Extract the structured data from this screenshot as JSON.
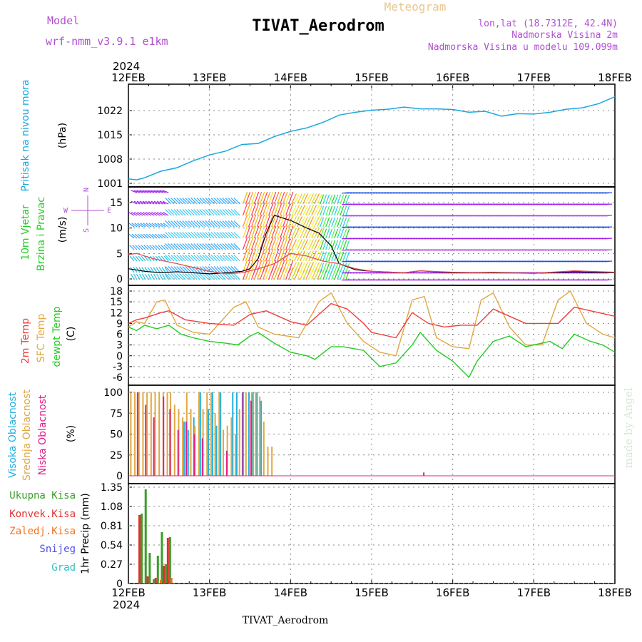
{
  "header": {
    "model_label": "Model",
    "model_value": "wrf-nmm_v3.9.1  e1km",
    "product": "Meteogram",
    "station": "TIVAT_Aerodrom",
    "lonlat": "lon,lat (18.7312E, 42.4N)",
    "elevation": "Nadmorska Visina 2m",
    "model_elevation": "Nadmorska Visina u modelu 109.099m"
  },
  "footer": {
    "station": "TIVAT_Aerodrom",
    "credit": "made by Angel"
  },
  "time_axis": {
    "year": "2024",
    "labels": [
      "12FEB",
      "13FEB",
      "14FEB",
      "15FEB",
      "16FEB",
      "17FEB",
      "18FEB"
    ]
  },
  "colors": {
    "pressure": "#1aa7e0",
    "temp2m": "#f03c3c",
    "sfc_temp": "#e0a840",
    "dewpoint": "#22cc22",
    "high_cloud": "#22b0e0",
    "mid_cloud": "#e0a840",
    "low_cloud": "#e0208a",
    "total_precip": "#3a9e2a",
    "conv_precip": "#e03030",
    "frozen_precip": "#f07020",
    "snow": "#5050e0",
    "hail": "#30c0c0",
    "wind_gust": "#000000",
    "wind_speed": "#e05050",
    "purple_text": "#b050d0"
  },
  "chart_data": [
    {
      "type": "line",
      "panel": "pressure",
      "ylabel_lines": [
        "Pritisak na nivou mora",
        "(hPa)"
      ],
      "ylim": [
        1001,
        1027
      ],
      "yticks": [
        "1022",
        "1015",
        "1008",
        "1001"
      ],
      "x_range_days": [
        12,
        18
      ],
      "series": [
        {
          "name": "Pritisak na nivou mora",
          "x": [
            12.0,
            12.1,
            12.2,
            12.4,
            12.6,
            12.8,
            13.0,
            13.2,
            13.4,
            13.6,
            13.8,
            14.0,
            14.2,
            14.4,
            14.6,
            14.8,
            15.0,
            15.2,
            15.4,
            15.6,
            15.8,
            16.0,
            16.2,
            16.4,
            16.6,
            16.8,
            17.0,
            17.2,
            17.4,
            17.6,
            17.8,
            18.0
          ],
          "values": [
            1002.3,
            1002.0,
            1002.6,
            1004.5,
            1005.5,
            1007.5,
            1009.2,
            1010.3,
            1012.2,
            1012.5,
            1014.5,
            1016.0,
            1017.0,
            1018.6,
            1020.7,
            1021.5,
            1022.1,
            1022.4,
            1023.0,
            1022.5,
            1022.5,
            1022.3,
            1021.5,
            1021.8,
            1020.4,
            1021.1,
            1021.0,
            1021.5,
            1022.4,
            1022.8,
            1024.0,
            1026.0
          ]
        }
      ]
    },
    {
      "type": "line",
      "panel": "wind",
      "ylabel_lines": [
        "10m Vjetar",
        "Brzina i Pravac",
        "(m/s)"
      ],
      "compass_labels": [
        "N",
        "W",
        "E",
        "S"
      ],
      "ylim": [
        0,
        18
      ],
      "yticks": [
        "15",
        "10",
        "5",
        "0"
      ],
      "series": [
        {
          "name": "gust",
          "x": [
            12.0,
            12.2,
            12.4,
            12.6,
            12.8,
            13.0,
            13.2,
            13.4,
            13.5,
            13.6,
            13.7,
            13.8,
            14.0,
            14.2,
            14.35,
            14.5,
            14.6,
            14.8,
            15.0,
            15.4,
            15.6,
            16.0,
            16.5,
            17.0,
            17.5,
            18.0
          ],
          "values": [
            2.0,
            1.5,
            1.2,
            1.4,
            1.2,
            1.0,
            1.2,
            1.5,
            2.0,
            4.0,
            9.0,
            12.5,
            11.5,
            10.0,
            9.0,
            6.5,
            3.0,
            1.8,
            1.5,
            1.2,
            1.6,
            1.2,
            1.3,
            1.1,
            1.4,
            1.2
          ]
        },
        {
          "name": "speed",
          "x": [
            12.0,
            12.1,
            12.3,
            12.6,
            13.0,
            13.2,
            13.4,
            13.6,
            13.8,
            14.0,
            14.2,
            14.4,
            14.6,
            14.8,
            15.0,
            15.4,
            15.6,
            16.0,
            16.5,
            17.0,
            17.5,
            18.0
          ],
          "values": [
            4.8,
            5.0,
            4.0,
            3.0,
            1.5,
            1.0,
            1.2,
            2.0,
            3.0,
            5.0,
            4.5,
            3.5,
            3.0,
            2.0,
            1.5,
            1.2,
            1.6,
            1.3,
            1.2,
            1.1,
            1.6,
            1.3
          ]
        }
      ]
    },
    {
      "type": "line",
      "panel": "temperature",
      "ylabel_lines": [
        "2m Temp",
        "SFC Temp",
        "dewpt Temp",
        "(C)"
      ],
      "ylim": [
        -8,
        18
      ],
      "yticks": [
        "18",
        "15",
        "12",
        "9",
        "6",
        "3",
        "0",
        "-3",
        "-6"
      ],
      "series": [
        {
          "name": "2m Temp",
          "x": [
            12.0,
            12.1,
            12.2,
            12.4,
            12.5,
            12.7,
            13.0,
            13.3,
            13.5,
            13.7,
            14.0,
            14.2,
            14.5,
            14.7,
            14.9,
            15.0,
            15.3,
            15.5,
            15.7,
            15.9,
            16.1,
            16.3,
            16.5,
            16.7,
            16.9,
            17.1,
            17.3,
            17.5,
            17.7,
            17.9,
            18.0
          ],
          "values": [
            9.0,
            10.0,
            10.5,
            12.0,
            12.5,
            10.0,
            9.0,
            8.5,
            11.5,
            12.5,
            9.5,
            8.5,
            14.5,
            13.0,
            9.0,
            6.5,
            5.0,
            12.0,
            9.0,
            8.0,
            8.5,
            8.5,
            13.0,
            11.0,
            9.0,
            9.0,
            9.0,
            13.5,
            12.5,
            11.5,
            11.0
          ]
        },
        {
          "name": "SFC Temp",
          "x": [
            12.0,
            12.1,
            12.2,
            12.35,
            12.45,
            12.6,
            12.8,
            13.0,
            13.3,
            13.45,
            13.6,
            13.8,
            14.1,
            14.35,
            14.5,
            14.7,
            14.9,
            15.1,
            15.3,
            15.5,
            15.65,
            15.8,
            16.0,
            16.2,
            16.35,
            16.5,
            16.7,
            16.9,
            17.1,
            17.3,
            17.45,
            17.65,
            17.85,
            18.0
          ],
          "values": [
            8.0,
            9.5,
            9.0,
            15.0,
            15.5,
            8.5,
            6.5,
            6.0,
            13.5,
            15.0,
            8.0,
            6.0,
            5.0,
            15.0,
            17.5,
            9.0,
            4.0,
            1.0,
            0.0,
            15.5,
            16.5,
            5.0,
            2.5,
            2.0,
            15.5,
            17.5,
            8.0,
            3.0,
            3.0,
            15.5,
            18.0,
            9.0,
            6.0,
            5.0
          ]
        },
        {
          "name": "dewpt Temp",
          "x": [
            12.0,
            12.1,
            12.2,
            12.35,
            12.5,
            12.65,
            12.8,
            13.0,
            13.2,
            13.35,
            13.5,
            13.6,
            13.8,
            14.0,
            14.2,
            14.3,
            14.5,
            14.65,
            14.9,
            15.1,
            15.3,
            15.5,
            15.6,
            15.8,
            16.0,
            16.2,
            16.3,
            16.5,
            16.7,
            16.9,
            17.0,
            17.2,
            17.35,
            17.5,
            17.7,
            17.85,
            18.0
          ],
          "values": [
            8.0,
            7.0,
            8.5,
            7.5,
            8.5,
            6.0,
            5.0,
            4.0,
            3.5,
            3.0,
            5.5,
            6.5,
            3.5,
            1.0,
            0.0,
            -1.0,
            2.5,
            2.5,
            1.5,
            -3.0,
            -2.0,
            3.0,
            6.5,
            1.5,
            -1.5,
            -6.0,
            -1.5,
            4.0,
            5.5,
            2.5,
            3.0,
            4.0,
            2.0,
            6.0,
            4.0,
            3.0,
            1.0
          ]
        }
      ]
    },
    {
      "type": "bar",
      "panel": "cloudiness",
      "ylabel_lines": [
        "Visoka Oblacnost",
        "Srednja Oblacnost",
        "Niska Oblacnost",
        "(%)"
      ],
      "ylim": [
        0,
        100
      ],
      "yticks": [
        "100",
        "75",
        "50",
        "25",
        "0"
      ],
      "series": [
        {
          "name": "Visoka Oblacnost",
          "x": [
            12.7,
            12.75,
            12.82,
            12.9,
            13.0,
            13.05,
            13.1,
            13.15,
            13.3,
            13.35,
            13.42,
            13.5,
            13.55,
            13.6,
            13.65
          ],
          "values": [
            65,
            55,
            70,
            100,
            80,
            100,
            60,
            100,
            100,
            100,
            100,
            100,
            100,
            100,
            90
          ]
        },
        {
          "name": "Srednja Oblacnost",
          "x": [
            12.03,
            12.08,
            12.13,
            12.18,
            12.23,
            12.28,
            12.33,
            12.38,
            12.43,
            12.48,
            12.52,
            12.57,
            12.62,
            12.67,
            12.72,
            12.77,
            12.82,
            12.87,
            12.92,
            12.97,
            13.02,
            13.07,
            13.12,
            13.17,
            13.22,
            13.27,
            13.32,
            13.37,
            13.45,
            13.52,
            13.57,
            13.62,
            13.67,
            13.72,
            13.77
          ],
          "values": [
            100,
            100,
            100,
            100,
            100,
            100,
            100,
            100,
            100,
            100,
            100,
            85,
            80,
            70,
            100,
            80,
            60,
            100,
            80,
            100,
            100,
            75,
            100,
            55,
            60,
            70,
            50,
            80,
            100,
            100,
            100,
            95,
            65,
            35,
            35
          ]
        },
        {
          "name": "Niska Oblacnost",
          "x": [
            12.1,
            12.2,
            12.3,
            12.42,
            12.5,
            12.6,
            12.7,
            12.8,
            12.9,
            13.2,
            13.4,
            13.5,
            15.63
          ],
          "values": [
            100,
            85,
            70,
            95,
            80,
            55,
            65,
            50,
            45,
            30,
            100,
            90,
            4
          ]
        }
      ]
    },
    {
      "type": "bar",
      "panel": "precipitation",
      "ylabel_lines": [
        "1hr Precip (mm)"
      ],
      "legend": [
        "Ukupna Kisa",
        "Konvek.Kisa",
        "Zaledj.Kisa",
        "Snijeg",
        "Grad"
      ],
      "ylim": [
        0,
        1.35
      ],
      "yticks": [
        "1.35",
        "1.08",
        "0.81",
        "0.54",
        "0.27",
        "0"
      ],
      "series": [
        {
          "name": "Ukupna Kisa",
          "x": [
            12.15,
            12.2,
            12.25,
            12.3,
            12.35,
            12.4,
            12.45,
            12.5
          ],
          "values": [
            0.98,
            1.32,
            0.43,
            0.06,
            0.39,
            0.72,
            0.27,
            0.65
          ]
        },
        {
          "name": "Konvek.Kisa",
          "x": [
            12.15,
            12.25,
            12.35,
            12.45,
            12.5
          ],
          "values": [
            0.96,
            0.1,
            0.08,
            0.25,
            0.64
          ]
        },
        {
          "name": "Zaledj.Kisa",
          "x": [
            12.4,
            12.53
          ],
          "values": [
            0.05,
            0.08
          ]
        }
      ]
    }
  ]
}
